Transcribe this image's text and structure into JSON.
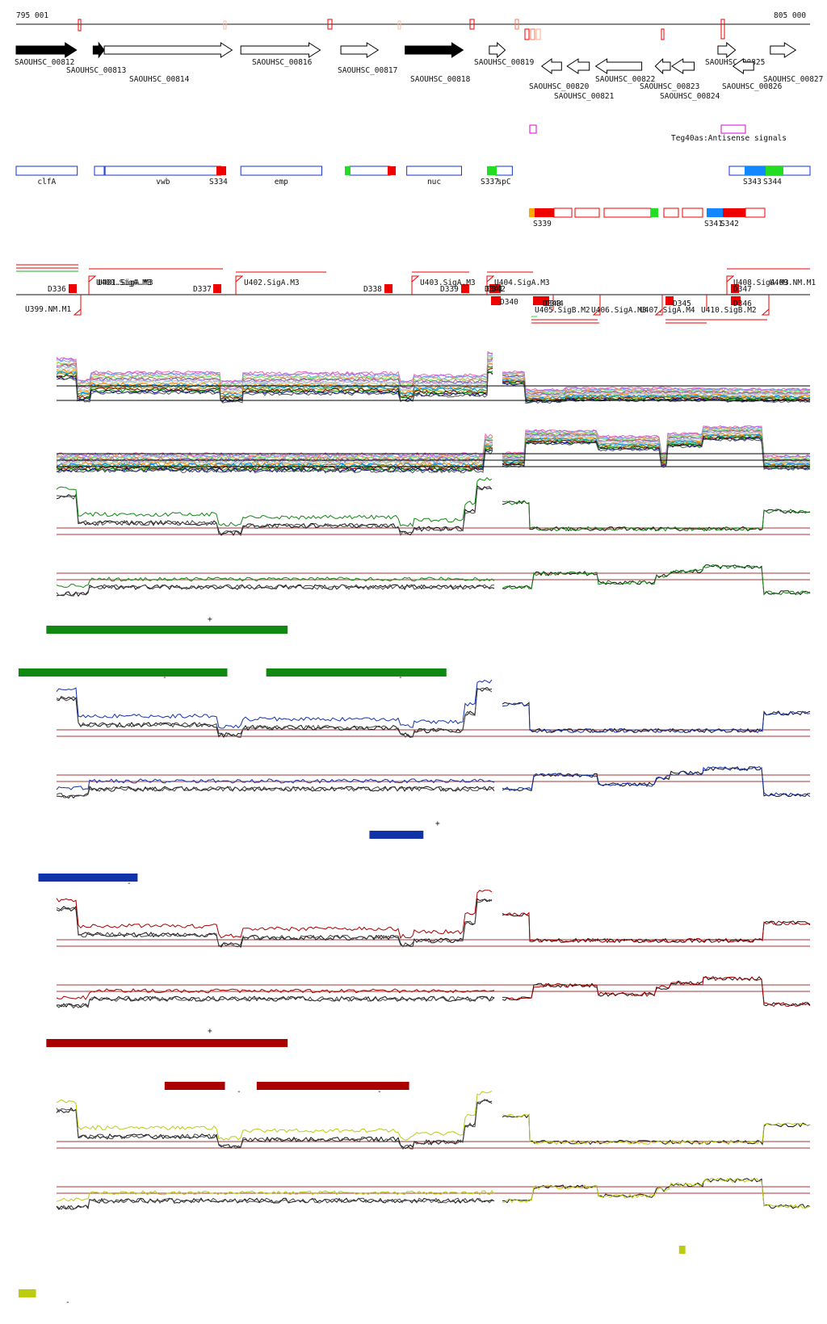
{
  "header": {
    "start_label": "795 001",
    "end_label": "805 000"
  },
  "palette": {
    "red": "#ee0000",
    "green": "#22dd22",
    "blue": "#1188ff",
    "orange": "#ffaa00",
    "magenta": "#dd00dd",
    "navy": "#1133aa",
    "dark_green": "#118811",
    "dark_red": "#aa0000",
    "yellow": "#bbcc11",
    "black": "#111111"
  },
  "genes": [
    {
      "label": "SAOUHSC_00812",
      "strand": "+",
      "filled": true,
      "from": 0.0,
      "to": 7.6
    },
    {
      "label": "SAOUHSC_00813",
      "strand": "+",
      "filled": true,
      "from": 9.7,
      "to": 11.1
    },
    {
      "label": "SAOUHSC_00814",
      "strand": "+",
      "filled": false,
      "from": 11.1,
      "to": 27.2
    },
    {
      "label": "SAOUHSC_00816",
      "strand": "+",
      "filled": false,
      "from": 28.3,
      "to": 38.3
    },
    {
      "label": "SAOUHSC_00817",
      "strand": "+",
      "filled": false,
      "from": 40.9,
      "to": 45.6
    },
    {
      "label": "SAOUHSC_00818",
      "strand": "+",
      "filled": true,
      "from": 49.0,
      "to": 56.3
    },
    {
      "label": "SAOUHSC_00819",
      "strand": "+",
      "filled": false,
      "from": 59.6,
      "to": 61.6
    },
    {
      "label": "SAOUHSC_00820",
      "strand": "-",
      "filled": false,
      "from": 66.2,
      "to": 68.7
    },
    {
      "label": "SAOUHSC_00821",
      "strand": "-",
      "filled": false,
      "from": 69.4,
      "to": 72.2
    },
    {
      "label": "SAOUHSC_00822",
      "strand": "-",
      "filled": false,
      "from": 73.0,
      "to": 78.8
    },
    {
      "label": "SAOUHSC_00823",
      "strand": "-",
      "filled": false,
      "from": 80.5,
      "to": 82.4
    },
    {
      "label": "SAOUHSC_00824",
      "strand": "-",
      "filled": false,
      "from": 82.6,
      "to": 85.4
    },
    {
      "label": "SAOUHSC_00825",
      "strand": "+",
      "filled": false,
      "from": 88.4,
      "to": 90.6
    },
    {
      "label": "SAOUHSC_00826",
      "strand": "-",
      "filled": false,
      "from": 90.3,
      "to": 92.9
    },
    {
      "label": "SAOUHSC_00827",
      "strand": "+",
      "filled": false,
      "from": 95.0,
      "to": 98.2
    }
  ],
  "antisense": {
    "label": "Teg40as:Antisense signals"
  },
  "named_features": [
    {
      "label": "clfA",
      "from": 0.0,
      "to": 7.7
    },
    {
      "label": "vwb",
      "from": 11.2,
      "to": 25.8
    },
    {
      "label": "emp",
      "from": 28.3,
      "to": 38.5
    },
    {
      "label": "nuc",
      "from": 49.2,
      "to": 56.1
    },
    {
      "label": "spC",
      "from": 60.4,
      "to": 62.5
    }
  ],
  "srna_labels": [
    "S334",
    "S337",
    "S339",
    "S341",
    "S342",
    "S343",
    "S344"
  ],
  "promoters": [
    {
      "label": "D336"
    },
    {
      "label": "U400.SigA.M3"
    },
    {
      "label": "U401.SigA.M3"
    },
    {
      "label": "U399.NM.M1"
    },
    {
      "label": "D337"
    },
    {
      "label": "U402.SigA.M3"
    },
    {
      "label": "D338"
    },
    {
      "label": "U403.SigA.M3"
    },
    {
      "label": "D339"
    },
    {
      "label": "U404.SigA.M3"
    },
    {
      "label": "D341"
    },
    {
      "label": "D342"
    },
    {
      "label": "D340"
    },
    {
      "label": "D343"
    },
    {
      "label": "D344"
    },
    {
      "label": "U405.SigB.M2"
    },
    {
      "label": "U406.SigA.M3"
    },
    {
      "label": "U407.SigA.M4"
    },
    {
      "label": "D345"
    },
    {
      "label": "U408.SigA.M3"
    },
    {
      "label": "U409.NM.M1"
    },
    {
      "label": "D346"
    },
    {
      "label": "D347"
    },
    {
      "label": "U410.SigB.M2"
    }
  ],
  "tracks": {
    "green": {
      "plus_sign": "+",
      "minus_sign": "-",
      "plus_bars": [
        [
          3.8,
          34.2
        ]
      ],
      "minus_bars": [
        [
          0.3,
          26.6
        ],
        [
          31.5,
          54.2
        ]
      ]
    },
    "blue": {
      "plus_sign": "+",
      "minus_sign": "-",
      "plus_bars": [
        [
          44.5,
          51.3
        ]
      ],
      "minus_bars": [
        [
          2.8,
          15.3
        ]
      ]
    },
    "red": {
      "plus_sign": "+",
      "minus_sign": "-",
      "plus_bars": [
        [
          3.8,
          34.2
        ]
      ],
      "minus_bars": [
        [
          18.7,
          26.3
        ],
        [
          30.3,
          49.5
        ]
      ]
    },
    "yellow": {
      "plus_sign": "+",
      "minus_sign": "-",
      "plus_bars": [
        [
          83.5,
          84.3
        ]
      ],
      "minus_bars": [
        [
          0.3,
          2.5
        ]
      ]
    }
  }
}
